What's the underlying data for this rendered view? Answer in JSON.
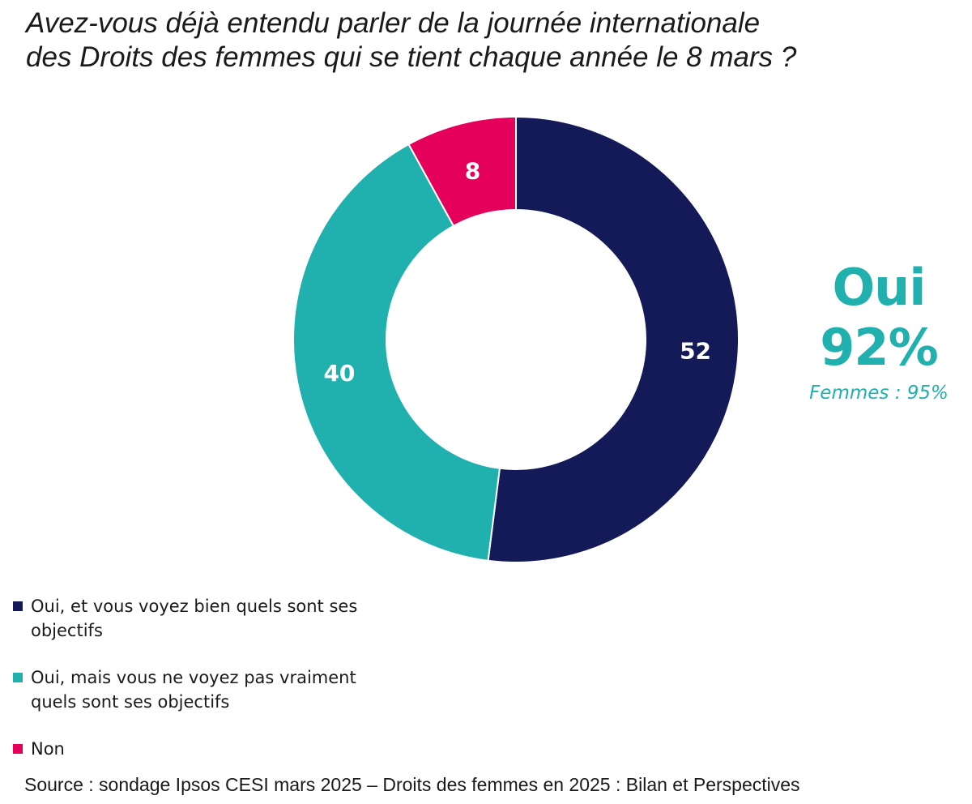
{
  "title_lines": [
    "Avez-vous déjà entendu parler de la journée internationale",
    "des Droits des femmes qui se tient chaque année le 8 mars ?"
  ],
  "callout": {
    "label": "Oui",
    "value": "92%",
    "note": "Femmes : 95%"
  },
  "source": "Source : sondage Ipsos CESI mars 2025 – Droits des femmes en 2025 : Bilan et Perspectives",
  "colors": {
    "navy": "#141a57",
    "teal": "#20b0ae",
    "pink": "#e5005c"
  },
  "chart_data": {
    "type": "pie",
    "variant": "donut",
    "title": "Avez-vous déjà entendu parler de la journée internationale des Droits des femmes qui se tient chaque année le 8 mars ?",
    "categories": [
      "Oui, et vous voyez bien quels sont ses objectifs",
      "Oui, mais vous ne voyez pas vraiment quels sont ses objectifs",
      "Non"
    ],
    "values": [
      52,
      40,
      8
    ],
    "data_labels": [
      "52",
      "40",
      "8"
    ],
    "colors": [
      "#141a57",
      "#20b0ae",
      "#e5005c"
    ],
    "start": "top",
    "direction": "clockwise",
    "legend_position": "bottom-left"
  },
  "legend": [
    {
      "lines": [
        "Oui, et vous voyez bien quels sont ses",
        "objectifs"
      ],
      "color": "#141a57"
    },
    {
      "lines": [
        "Oui, mais vous ne voyez pas vraiment",
        "quels sont ses objectifs"
      ],
      "color": "#20b0ae"
    },
    {
      "lines": [
        "Non"
      ],
      "color": "#e5005c"
    }
  ]
}
